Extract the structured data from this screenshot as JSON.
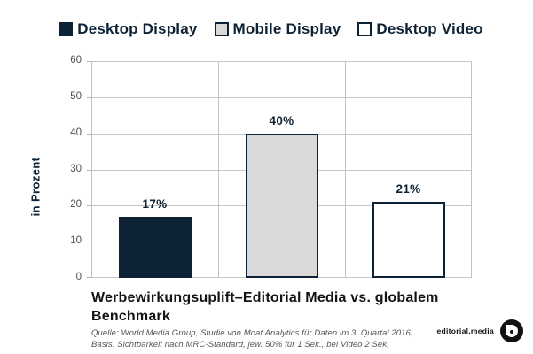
{
  "legend": {
    "items": [
      {
        "label": "Desktop Display",
        "fill": "#0d2235",
        "border": "#0d2235"
      },
      {
        "label": "Mobile Display",
        "fill": "#d9d9d9",
        "border": "#0d2235"
      },
      {
        "label": "Desktop Video",
        "fill": "#ffffff",
        "border": "#0d2235"
      }
    ]
  },
  "chart_data": {
    "type": "bar",
    "categories": [
      "Desktop Display",
      "Mobile Display",
      "Desktop Video"
    ],
    "values": [
      17,
      40,
      21
    ],
    "value_labels": [
      "17%",
      "40%",
      "21%"
    ],
    "title": "Werbewirkungsuplift–Editorial Media vs. globalem Benchmark",
    "xlabel": "",
    "ylabel": "in Prozent",
    "ylim": [
      0,
      60
    ],
    "yticks": [
      0,
      10,
      20,
      30,
      40,
      50,
      60
    ],
    "grid": true,
    "legend_position": "top",
    "bar_colors": [
      "#0d2235",
      "#d9d9d9",
      "#ffffff"
    ],
    "bar_border_color": "#0d2235",
    "accent_color": "#0d2235",
    "gridline_color": "#c6c6c6"
  },
  "footer": {
    "title": "Werbewirkungsuplift–Editorial Media vs. globalem Benchmark",
    "source_lines": [
      "Quelle: World Media Group, Studie von Moat Analytics für Daten im 3. Quartal 2016,",
      "Basis: Sichtbarkeit nach MRC-Standard, jew. 50% für 1 Sek., bei Video 2 Sek."
    ]
  },
  "brand": {
    "name": "editorial.media"
  }
}
